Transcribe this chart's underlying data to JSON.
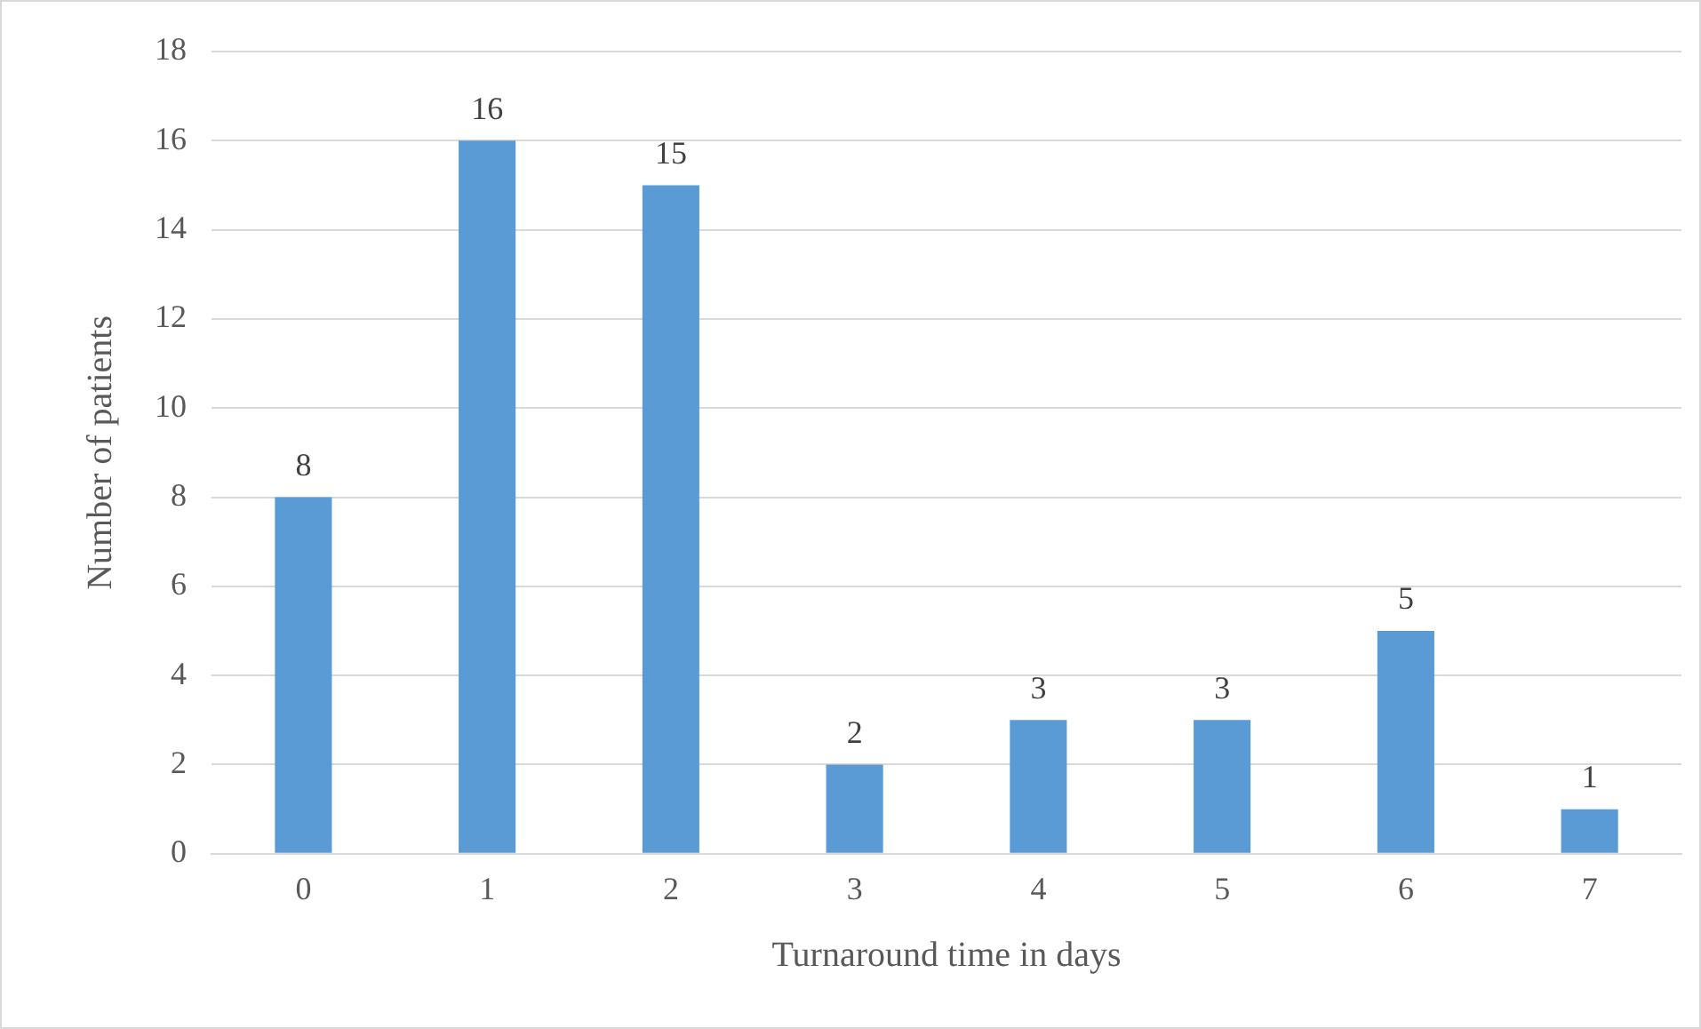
{
  "chart_data": {
    "type": "bar",
    "xlabel": "Turnaround time in days",
    "ylabel": "Number of patients",
    "categories": [
      "0",
      "1",
      "2",
      "3",
      "4",
      "5",
      "6",
      "7"
    ],
    "values": [
      8,
      16,
      15,
      2,
      3,
      3,
      5,
      1
    ],
    "color": "#5b9bd5",
    "ylim": [
      0,
      18
    ],
    "yticks": [
      0,
      2,
      4,
      6,
      8,
      10,
      12,
      14,
      16,
      18
    ],
    "grid": "y",
    "data_labels": true,
    "legend": false
  }
}
